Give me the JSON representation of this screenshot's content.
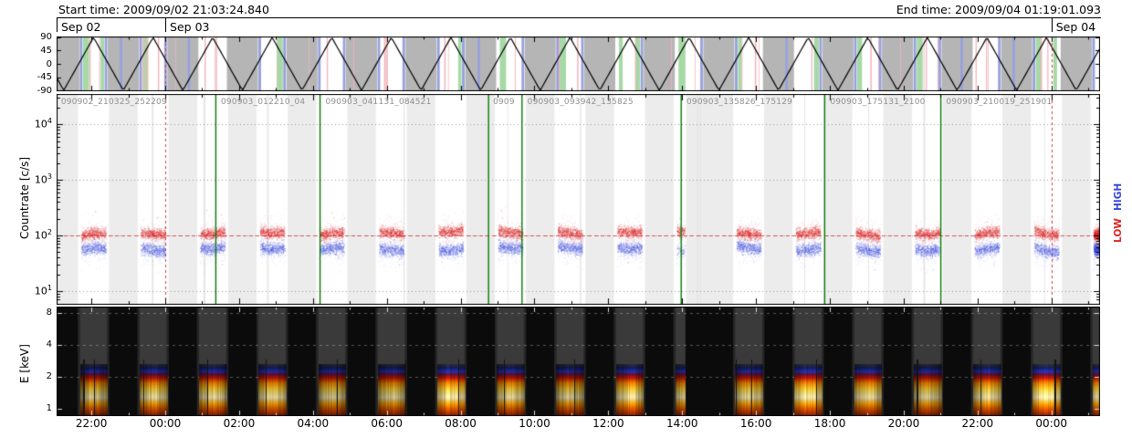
{
  "header": {
    "start": "Start time: 2009/09/02 21:03:24.840",
    "end": "End time: 2009/09/04 01:19:01.093"
  },
  "dates": [
    {
      "label": "Sep 02",
      "t": 0.0
    },
    {
      "label": "Sep 03",
      "t": 2.943
    },
    {
      "label": "Sep 04",
      "t": 26.943
    }
  ],
  "x_axis": {
    "total_hours": 28.26,
    "minor_step_hours": 1,
    "major_ticks": [
      {
        "t": 0.943,
        "label": "22:00"
      },
      {
        "t": 2.943,
        "label": "00:00"
      },
      {
        "t": 4.943,
        "label": "02:00"
      },
      {
        "t": 6.943,
        "label": "04:00"
      },
      {
        "t": 8.943,
        "label": "06:00"
      },
      {
        "t": 10.943,
        "label": "08:00"
      },
      {
        "t": 12.943,
        "label": "10:00"
      },
      {
        "t": 14.943,
        "label": "12:00"
      },
      {
        "t": 16.943,
        "label": "14:00"
      },
      {
        "t": 18.943,
        "label": "16:00"
      },
      {
        "t": 20.943,
        "label": "18:00"
      },
      {
        "t": 22.943,
        "label": "20:00"
      },
      {
        "t": 24.943,
        "label": "22:00"
      },
      {
        "t": 26.943,
        "label": "00:00"
      }
    ]
  },
  "chart_data": [
    {
      "type": "line",
      "name": "attitude-panel",
      "y_ticks": [
        90,
        45,
        0,
        -45,
        -90
      ],
      "y_range": [
        -90,
        90
      ],
      "wave": {
        "shape": "triangle",
        "period_hours": 1.613,
        "first_peak_t": 1.0,
        "min": -90,
        "max": 90
      },
      "band_colors": {
        "night_gray": "#b5b5b5",
        "blue": "#98a1dc",
        "green": "#a6d9a6",
        "pink": "#f3b4ba"
      }
    },
    {
      "type": "scatter",
      "name": "countrate-panel",
      "ylabel": "Countrate [c/s]",
      "log_range_exp": [
        0.75,
        4.55
      ],
      "y_ticks": [
        {
          "base": "10",
          "exp": "1"
        },
        {
          "base": "10",
          "exp": "2"
        },
        {
          "base": "10",
          "exp": "3"
        },
        {
          "base": "10",
          "exp": "4"
        }
      ],
      "series": [
        {
          "name": "LOW",
          "color": "#dd2222",
          "mean_cps": 112,
          "spread_dex": 0.05
        },
        {
          "name": "HIGH",
          "color": "#3344dd",
          "mean_cps": 57,
          "spread_dex": 0.055
        }
      ],
      "reference_line_cps": 100,
      "reference_line_color": "#e05050",
      "midnight_lines_t": [
        2.943,
        26.943
      ],
      "midnight_line_color": "#cf4040",
      "segment_line_color": "#067806",
      "grid_color": "#999999",
      "bg_color": "#ececec",
      "day_band_color": "#ffffff",
      "orbit_clusters": {
        "period_hours": 1.613,
        "first_peak_t": 1.0,
        "count": 18,
        "half_width_hours": 0.33,
        "partial_orbit_index": 10
      },
      "file_segments": [
        {
          "label": "090902_210325_252209",
          "t_line": null,
          "t_label": 0.12
        },
        {
          "label": "090903_012210_04",
          "t_line": 4.312,
          "t_label": 4.45
        },
        {
          "label": "090903_041131_084521",
          "t_line": 7.135,
          "t_label": 7.28
        },
        {
          "label": "0909",
          "t_line": 11.699,
          "t_label": 11.82
        },
        {
          "label": "090903_093942_135825",
          "t_line": 12.605,
          "t_label": 12.75
        },
        {
          "label": "090903_135826_175129",
          "t_line": 16.917,
          "t_label": 17.06
        },
        {
          "label": "090903_175131_2100",
          "t_line": 20.802,
          "t_label": 20.95
        },
        {
          "label": "090903_210019_251901",
          "t_line": 23.948,
          "t_label": 24.09
        }
      ]
    },
    {
      "type": "heatmap",
      "name": "spectrogram-panel",
      "ylabel": "E [keV]",
      "y_ticks": [
        8,
        4,
        2,
        1
      ],
      "e_range_kev": [
        0.85,
        9.2
      ],
      "bright_band_kev": [
        1.0,
        2.5
      ],
      "background": "#3a3a3a",
      "night_color": "#0b0b0b",
      "color_stops": [
        {
          "kev": 0.85,
          "color": "#8a1e00"
        },
        {
          "kev": 0.98,
          "color": "#e05200"
        },
        {
          "kev": 1.1,
          "color": "#ffa200"
        },
        {
          "kev": 1.28,
          "color": "#fff4bc"
        },
        {
          "kev": 1.52,
          "color": "#ffd43a"
        },
        {
          "kev": 1.74,
          "color": "#ff8a00"
        },
        {
          "kev": 1.94,
          "color": "#c81e00"
        },
        {
          "kev": 2.1,
          "color": "#6e1038"
        },
        {
          "kev": 2.24,
          "color": "#2334bd"
        },
        {
          "kev": 2.42,
          "color": "#161f60"
        },
        {
          "kev": 2.65,
          "color": "#323232"
        }
      ]
    }
  ]
}
